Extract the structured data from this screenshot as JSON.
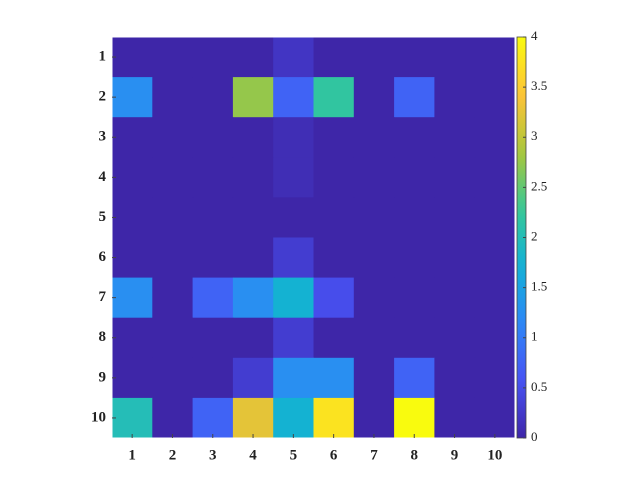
{
  "chart_data": {
    "type": "heatmap",
    "colormap": "parula",
    "x": [
      1,
      2,
      3,
      4,
      5,
      6,
      7,
      8,
      9,
      10
    ],
    "y": [
      1,
      2,
      3,
      4,
      5,
      6,
      7,
      8,
      9,
      10
    ],
    "values": [
      [
        0,
        0,
        0,
        0,
        0.2,
        0,
        0,
        0,
        0,
        0
      ],
      [
        1.25,
        0,
        0,
        2.75,
        0.75,
        2.2,
        0,
        0.75,
        0,
        0
      ],
      [
        0,
        0,
        0,
        0,
        0.1,
        0,
        0,
        0,
        0,
        0
      ],
      [
        0,
        0,
        0,
        0,
        0.1,
        0,
        0,
        0,
        0,
        0
      ],
      [
        0,
        0,
        0,
        0,
        0,
        0,
        0,
        0,
        0,
        0
      ],
      [
        0,
        0,
        0,
        0,
        0.3,
        0,
        0,
        0,
        0,
        0
      ],
      [
        1.25,
        0,
        0.75,
        1.25,
        1.75,
        0.5,
        0,
        0,
        0,
        0
      ],
      [
        0,
        0,
        0,
        0,
        0.3,
        0,
        0,
        0,
        0,
        0
      ],
      [
        0,
        0,
        0,
        0.3,
        1.25,
        1.25,
        0,
        0.75,
        0,
        0
      ],
      [
        2,
        0,
        0.75,
        3.25,
        1.75,
        3.75,
        0,
        4,
        0,
        0
      ]
    ],
    "clim": [
      0,
      4
    ],
    "cticks": [
      0,
      0.5,
      1,
      1.5,
      2,
      2.5,
      3,
      3.5,
      4
    ]
  }
}
